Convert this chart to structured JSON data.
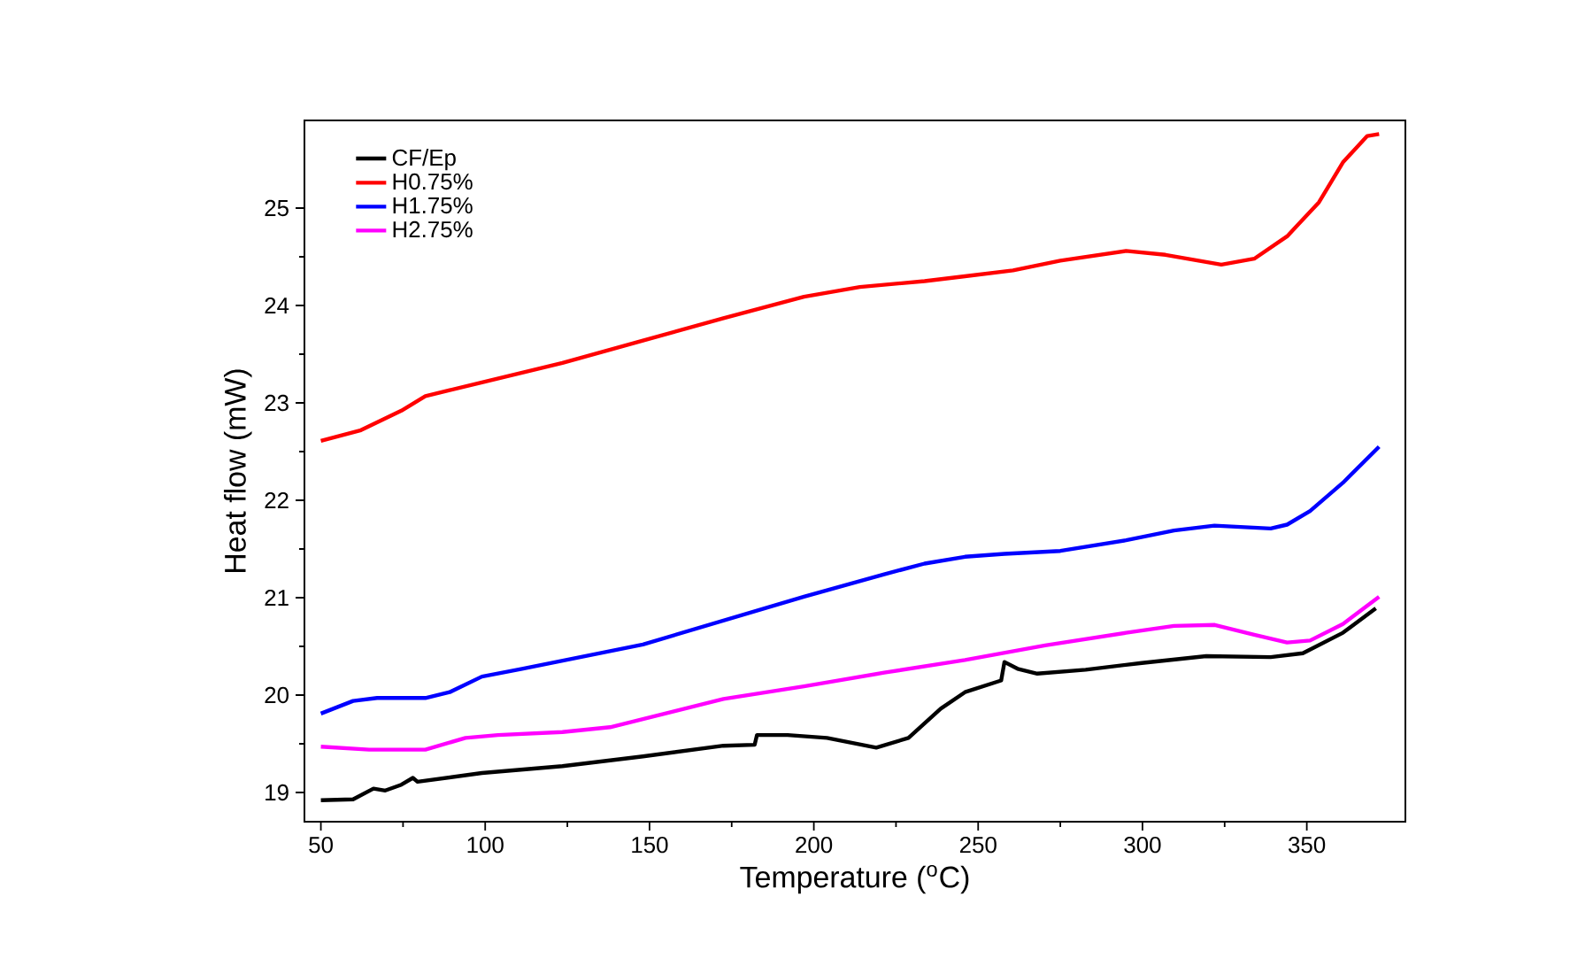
{
  "chart_data": {
    "type": "line",
    "xlabel": "Temperature ($^{o}$C)",
    "ylabel": "Heat flow (mW)",
    "xlim": [
      45,
      380
    ],
    "ylim": [
      18.7,
      25.9
    ],
    "xticks": [
      50,
      100,
      150,
      200,
      250,
      300,
      350
    ],
    "yticks": [
      19,
      20,
      21,
      22,
      23,
      24,
      25
    ],
    "grid": false,
    "legend": "top left",
    "series": [
      {
        "name": "CF/Ep",
        "color": "#000000",
        "x": [
          50,
          59.8,
          66,
          69.6,
          74.5,
          78,
          79.4,
          99,
          123.5,
          148,
          172.5,
          182,
          182.7,
          192,
          204,
          219,
          228.8,
          238.6,
          246,
          257,
          258,
          262,
          268,
          282.7,
          299.8,
          319.4,
          339,
          348.8,
          361,
          371
        ],
        "values": [
          18.92,
          18.93,
          19.04,
          19.02,
          19.08,
          19.15,
          19.11,
          19.2,
          19.27,
          19.37,
          19.48,
          19.49,
          19.59,
          19.59,
          19.56,
          19.46,
          19.56,
          19.86,
          20.03,
          20.15,
          20.34,
          20.27,
          20.22,
          20.26,
          20.33,
          20.4,
          20.39,
          20.43,
          20.64,
          20.89
        ]
      },
      {
        "name": "H0.75%",
        "color": "#ff0000",
        "x": [
          50,
          62.2,
          74.5,
          81.8,
          89.2,
          99,
          123.5,
          148,
          172.5,
          197,
          214,
          233.7,
          246,
          260.6,
          275,
          295,
          307,
          324,
          334,
          344,
          353.7,
          361,
          368.4,
          372
        ],
        "values": [
          22.61,
          22.72,
          22.92,
          23.07,
          23.13,
          23.21,
          23.41,
          23.64,
          23.87,
          24.09,
          24.19,
          24.25,
          24.3,
          24.36,
          24.46,
          24.56,
          24.52,
          24.42,
          24.48,
          24.71,
          25.06,
          25.47,
          25.74,
          25.76
        ]
      },
      {
        "name": "H1.75%",
        "color": "#0000ff",
        "x": [
          50,
          59.8,
          67.1,
          81.8,
          89.2,
          99,
          111.2,
          148,
          197,
          221.4,
          233.7,
          246,
          258,
          275,
          295,
          309.6,
          321.9,
          339,
          344,
          351,
          361,
          372
        ],
        "values": [
          19.81,
          19.94,
          19.97,
          19.97,
          20.03,
          20.19,
          20.27,
          20.52,
          21.01,
          21.24,
          21.35,
          21.42,
          21.45,
          21.48,
          21.59,
          21.69,
          21.74,
          21.71,
          21.75,
          21.89,
          22.18,
          22.55
        ]
      },
      {
        "name": "H2.75%",
        "color": "#ff00ff",
        "x": [
          50,
          64.7,
          81.8,
          94,
          103.9,
          123.5,
          138,
          172.5,
          197,
          221.4,
          246,
          270.4,
          295,
          309.6,
          322,
          334,
          344,
          351,
          361,
          372
        ],
        "values": [
          19.47,
          19.44,
          19.44,
          19.56,
          19.59,
          19.62,
          19.67,
          19.96,
          20.09,
          20.23,
          20.36,
          20.51,
          20.64,
          20.71,
          20.72,
          20.62,
          20.54,
          20.56,
          20.73,
          21.01
        ]
      }
    ]
  }
}
